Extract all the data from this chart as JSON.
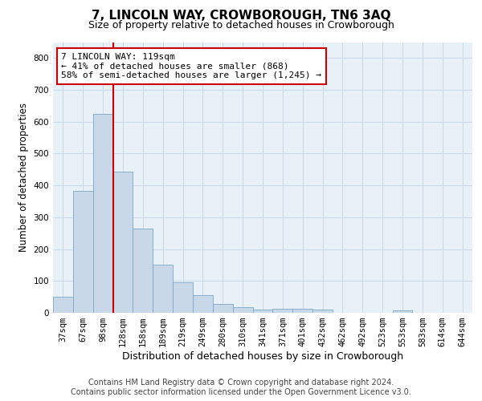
{
  "title": "7, LINCOLN WAY, CROWBOROUGH, TN6 3AQ",
  "subtitle": "Size of property relative to detached houses in Crowborough",
  "xlabel": "Distribution of detached houses by size in Crowborough",
  "ylabel": "Number of detached properties",
  "categories": [
    "37sqm",
    "67sqm",
    "98sqm",
    "128sqm",
    "158sqm",
    "189sqm",
    "219sqm",
    "249sqm",
    "280sqm",
    "310sqm",
    "341sqm",
    "371sqm",
    "401sqm",
    "432sqm",
    "462sqm",
    "492sqm",
    "523sqm",
    "553sqm",
    "583sqm",
    "614sqm",
    "644sqm"
  ],
  "bar_heights": [
    50,
    382,
    625,
    443,
    265,
    152,
    95,
    55,
    28,
    18,
    10,
    12,
    12,
    10,
    0,
    0,
    0,
    8,
    0,
    0,
    0
  ],
  "bar_color": "#c8d8e8",
  "bar_edge_color": "#7aa8c8",
  "vline_color": "#cc0000",
  "annotation_line1": "7 LINCOLN WAY: 119sqm",
  "annotation_line2": "← 41% of detached houses are smaller (868)",
  "annotation_line3": "58% of semi-detached houses are larger (1,245) →",
  "annotation_box_color": "#ffffff",
  "annotation_box_edge": "#cc0000",
  "ylim": [
    0,
    850
  ],
  "yticks": [
    0,
    100,
    200,
    300,
    400,
    500,
    600,
    700,
    800
  ],
  "grid_color": "#c8d8e8",
  "background_color": "#e8f0f8",
  "footer_line1": "Contains HM Land Registry data © Crown copyright and database right 2024.",
  "footer_line2": "Contains public sector information licensed under the Open Government Licence v3.0.",
  "title_fontsize": 11,
  "subtitle_fontsize": 9,
  "xlabel_fontsize": 9,
  "ylabel_fontsize": 8.5,
  "tick_fontsize": 7.5,
  "footer_fontsize": 7,
  "annotation_fontsize": 8
}
